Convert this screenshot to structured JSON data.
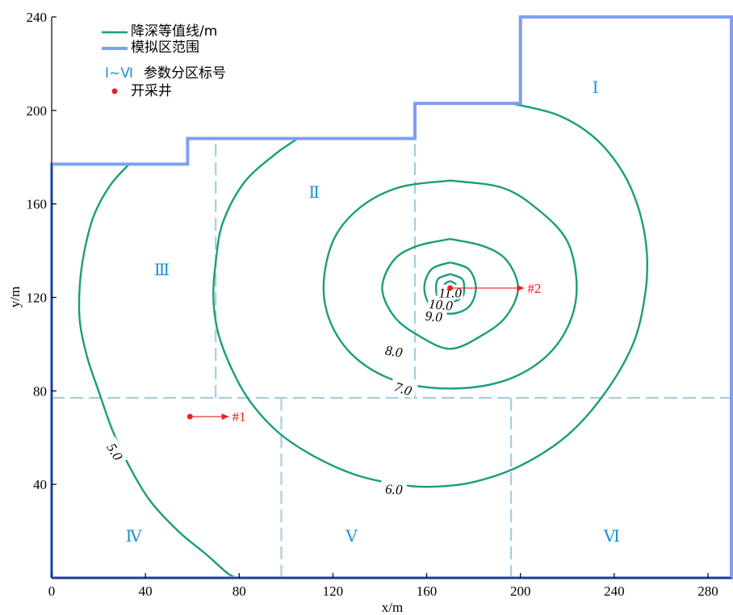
{
  "chart_data": {
    "type": "contour",
    "xlabel": "x/m",
    "ylabel": "y/m",
    "xlim": [
      0,
      290
    ],
    "ylim": [
      0,
      240
    ],
    "x_ticks": [
      0,
      40,
      80,
      120,
      160,
      200,
      240,
      280
    ],
    "y_ticks": [
      40,
      80,
      120,
      160,
      200,
      240
    ],
    "colors": {
      "contour": "#1a9e78",
      "boundary": "#7f9ff2",
      "zone_divider": "#a8cde0",
      "zone_label": "#1a8fd8",
      "well": "#e8221f"
    },
    "legend": [
      {
        "kind": "line",
        "color": "#1a9e78",
        "label": "降深等值线/m"
      },
      {
        "kind": "thick-line",
        "color": "#7f9ff2",
        "label": "模拟区范围"
      },
      {
        "kind": "zone-text",
        "text": "Ⅰ~Ⅵ",
        "label": "参数分区标号"
      },
      {
        "kind": "dot",
        "color": "#e8221f",
        "label": "开采井"
      }
    ],
    "boundary": [
      [
        0,
        0
      ],
      [
        290,
        0
      ],
      [
        290,
        240
      ],
      [
        200,
        240
      ],
      [
        200,
        203
      ],
      [
        155,
        203
      ],
      [
        155,
        188
      ],
      [
        58,
        188
      ],
      [
        58,
        177
      ],
      [
        0,
        177
      ],
      [
        0,
        0
      ]
    ],
    "zone_dividers": [
      [
        [
          0,
          77
        ],
        [
          290,
          77
        ]
      ],
      [
        [
          70,
          77
        ],
        [
          70,
          188
        ]
      ],
      [
        [
          155,
          77
        ],
        [
          155,
          188
        ]
      ],
      [
        [
          98,
          0
        ],
        [
          98,
          77
        ]
      ],
      [
        [
          196,
          0
        ],
        [
          196,
          77
        ]
      ]
    ],
    "zones": [
      {
        "label": "Ⅰ",
        "x": 232,
        "y": 210
      },
      {
        "label": "Ⅱ",
        "x": 112,
        "y": 165
      },
      {
        "label": "Ⅲ",
        "x": 47,
        "y": 132
      },
      {
        "label": "Ⅳ",
        "x": 35,
        "y": 18
      },
      {
        "label": "Ⅴ",
        "x": 128,
        "y": 18
      },
      {
        "label": "Ⅵ",
        "x": 239,
        "y": 18
      }
    ],
    "wells": [
      {
        "name": "#1",
        "x": 59,
        "y": 69,
        "label_x": 77,
        "label_y": 68
      },
      {
        "name": "#2",
        "x": 170,
        "y": 124,
        "label_x": 203,
        "label_y": 122
      }
    ],
    "contours": [
      {
        "level": "5.0",
        "label_x": 27,
        "label_y": 54,
        "label_angle": 58,
        "points": [
          [
            33,
            177
          ],
          [
            25,
            168
          ],
          [
            18,
            155
          ],
          [
            14,
            140
          ],
          [
            12,
            125
          ],
          [
            12,
            110
          ],
          [
            15,
            95
          ],
          [
            20,
            80
          ],
          [
            26,
            63
          ],
          [
            33,
            48
          ],
          [
            42,
            33
          ],
          [
            54,
            20
          ],
          [
            66,
            10
          ],
          [
            75,
            2
          ],
          [
            79,
            0
          ]
        ]
      },
      {
        "level": "6.0",
        "label_x": 146,
        "label_y": 38,
        "label_angle": 3,
        "points": [
          [
            105,
            188
          ],
          [
            95,
            181
          ],
          [
            82,
            169
          ],
          [
            73,
            152
          ],
          [
            70,
            135
          ],
          [
            69,
            120
          ],
          [
            71,
            105
          ],
          [
            77,
            89
          ],
          [
            85,
            75
          ],
          [
            97,
            62
          ],
          [
            112,
            52
          ],
          [
            130,
            44
          ],
          [
            148,
            40
          ],
          [
            162,
            39
          ],
          [
            180,
            41
          ],
          [
            200,
            48
          ],
          [
            220,
            61
          ],
          [
            236,
            79
          ],
          [
            248,
            100
          ],
          [
            253,
            120
          ],
          [
            254,
            138
          ],
          [
            251,
            156
          ],
          [
            244,
            173
          ],
          [
            232,
            188
          ],
          [
            216,
            198
          ],
          [
            196,
            203
          ]
        ]
      },
      {
        "level": "7.0",
        "label_x": 150,
        "label_y": 81,
        "label_angle": 18,
        "points": [
          [
            170,
            170
          ],
          [
            192,
            167
          ],
          [
            207,
            158
          ],
          [
            220,
            144
          ],
          [
            224,
            124
          ],
          [
            220,
            107
          ],
          [
            209,
            93
          ],
          [
            192,
            84
          ],
          [
            170,
            81
          ],
          [
            148,
            84
          ],
          [
            131,
            93
          ],
          [
            120,
            107
          ],
          [
            116,
            124
          ],
          [
            120,
            144
          ],
          [
            131,
            158
          ],
          [
            148,
            167
          ],
          [
            170,
            170
          ]
        ]
      },
      {
        "level": "8.0",
        "label_x": 146,
        "label_y": 97,
        "label_angle": 8,
        "points": [
          [
            170,
            145
          ],
          [
            184,
            142
          ],
          [
            194,
            136
          ],
          [
            199,
            124
          ],
          [
            194,
            112
          ],
          [
            184,
            104
          ],
          [
            170,
            98
          ],
          [
            156,
            104
          ],
          [
            146,
            112
          ],
          [
            141,
            124
          ],
          [
            146,
            136
          ],
          [
            156,
            142
          ],
          [
            170,
            145
          ]
        ]
      },
      {
        "level": "9.0",
        "label_x": 163,
        "label_y": 112,
        "label_angle": 5,
        "points": [
          [
            170,
            135
          ],
          [
            178,
            132
          ],
          [
            181,
            124
          ],
          [
            178,
            116
          ],
          [
            170,
            113
          ],
          [
            162,
            116
          ],
          [
            159,
            124
          ],
          [
            162,
            132
          ],
          [
            170,
            135
          ]
        ]
      },
      {
        "level": "10.0",
        "label_x": 166,
        "label_y": 117,
        "label_angle": 5,
        "points": [
          [
            170,
            130
          ],
          [
            175,
            128
          ],
          [
            176,
            124
          ],
          [
            175,
            120
          ],
          [
            170,
            118
          ],
          [
            165,
            120
          ],
          [
            164,
            124
          ],
          [
            165,
            128
          ],
          [
            170,
            130
          ]
        ]
      },
      {
        "level": "11.0",
        "label_x": 170,
        "label_y": 122,
        "label_angle": 0,
        "points": [
          [
            170,
            127
          ],
          [
            172,
            126
          ],
          [
            173,
            124
          ],
          [
            172,
            122
          ],
          [
            170,
            121
          ],
          [
            168,
            122
          ],
          [
            167,
            124
          ],
          [
            168,
            126
          ],
          [
            170,
            127
          ]
        ]
      }
    ]
  }
}
